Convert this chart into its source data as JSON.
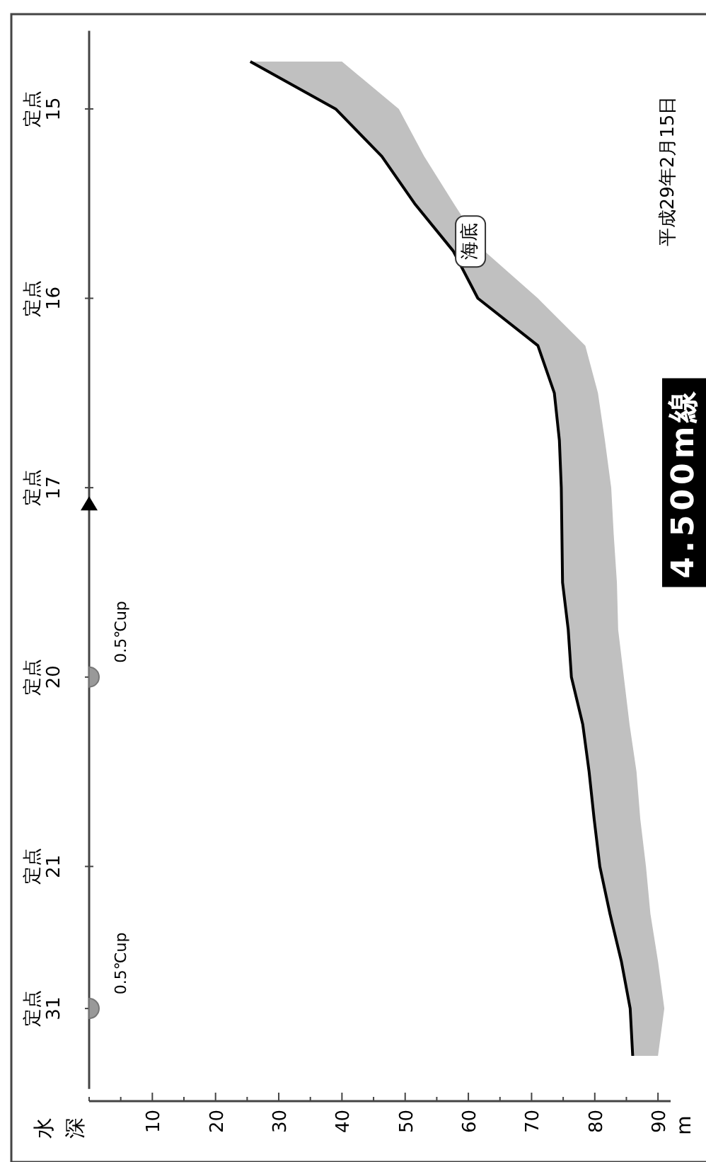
{
  "chart_data": {
    "type": "line",
    "orientation": "horizontal",
    "title": "4.500m線",
    "subtitle": "平成29年2月15日",
    "xlim": [
      0,
      92
    ],
    "xticks": [
      {
        "value": 0,
        "label": null
      },
      {
        "value": 5,
        "label": null
      },
      10,
      {
        "value": 15,
        "label": null
      },
      20,
      {
        "value": 25,
        "label": null
      },
      30,
      {
        "value": 35,
        "label": null
      },
      40,
      {
        "value": 45,
        "label": null
      },
      50,
      {
        "value": 55,
        "label": null
      },
      60,
      {
        "value": 65,
        "label": null
      },
      70,
      {
        "value": 75,
        "label": null
      },
      80,
      {
        "value": 85,
        "label": null
      },
      90
    ],
    "categories": [
      null,
      "定点 15",
      null,
      null,
      null,
      "定点 16",
      null,
      null,
      null,
      "定点 17",
      null,
      null,
      null,
      "定点 20",
      null,
      null,
      null,
      "定点 21",
      null,
      null,
      "定点 31",
      null
    ],
    "series": [
      {
        "color": "#000000",
        "values": [
          25.5,
          39,
          46.3,
          51.5,
          57.6,
          61.5,
          71,
          73.6,
          74.4,
          74.7,
          74.8,
          74.9,
          75.8,
          76.3,
          78.1,
          79.1,
          79.9,
          80.8,
          82.4,
          84.2,
          85.6,
          86
        ],
        "lower": [
          25.5,
          39,
          46.3,
          51.5,
          57.6,
          61.5,
          71,
          73.6,
          74.4,
          74.7,
          74.8,
          74.9,
          75.8,
          76.3,
          78.1,
          79.1,
          79.9,
          80.8,
          82.4,
          84.2,
          85.6,
          86
        ],
        "upper": [
          40,
          49,
          53,
          57.7,
          62.5,
          71,
          78.5,
          80.5,
          81.6,
          82.6,
          83,
          83.5,
          83.7,
          84.6,
          85.5,
          86.6,
          87.2,
          88.1,
          88.8,
          90,
          91,
          90
        ]
      }
    ],
    "annotations": [
      "海底",
      "0.5℃up",
      "0.5℃up",
      "m",
      "水深"
    ]
  }
}
